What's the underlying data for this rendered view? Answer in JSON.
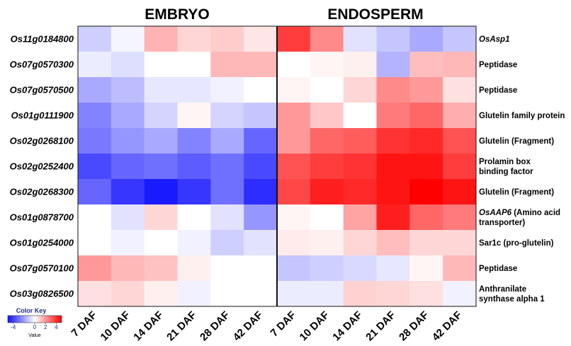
{
  "chart_data": {
    "type": "heatmap",
    "panels": [
      {
        "title": "EMBRYO",
        "columns": [
          "7 DAF",
          "10 DAF",
          "14 DAF",
          "21 DAF",
          "28 DAF",
          "42 DAF"
        ]
      },
      {
        "title": "ENDOSPERM",
        "columns": [
          "7 DAF",
          "10 DAF",
          "14 DAF",
          "21 DAF",
          "28 DAF",
          "42 DAF"
        ]
      }
    ],
    "rows": [
      "Os11g0184800",
      "Os07g0570300",
      "Os07g0570500",
      "Os01g0111900",
      "Os02g0268100",
      "Os02g0252400",
      "Os02g0268300",
      "Os01g0878700",
      "Os01g0254000",
      "Os07g0570100",
      "Os03g0826500"
    ],
    "annotations": [
      [
        {
          "text": "OsAsp1",
          "italic": true
        }
      ],
      [
        {
          "text": "Peptidase",
          "italic": false
        }
      ],
      [
        {
          "text": "Peptidase",
          "italic": false
        }
      ],
      [
        {
          "text": "Glutelin family protein",
          "italic": false
        }
      ],
      [
        {
          "text": "Glutelin (Fragment)",
          "italic": false
        }
      ],
      [
        {
          "text": "Prolamin box",
          "italic": false
        },
        {
          "text": "binding factor",
          "italic": false
        }
      ],
      [
        {
          "text": "Glutelin (Fragment)",
          "italic": false
        }
      ],
      [
        {
          "text": "OsAAP6",
          "italic": true,
          "suffix": " (Amino acid"
        },
        {
          "text": "transporter)",
          "italic": false
        }
      ],
      [
        {
          "text": "Sar1c (pro-glutelin)",
          "italic": false
        }
      ],
      [
        {
          "text": "Peptidase",
          "italic": false
        }
      ],
      [
        {
          "text": "Anthranilate",
          "italic": false
        },
        {
          "text": "synthase alpha 1",
          "italic": false
        }
      ]
    ],
    "values": [
      [
        -1.0,
        -0.2,
        1.5,
        0.8,
        1.0,
        0.5,
        3.8,
        2.3,
        -0.6,
        -1.2,
        -1.8,
        -1.2
      ],
      [
        -0.4,
        -0.7,
        0.0,
        0.0,
        1.4,
        1.4,
        0.0,
        0.2,
        0.3,
        -1.6,
        1.3,
        1.4
      ],
      [
        -1.8,
        -1.4,
        -0.5,
        -0.5,
        -0.3,
        0.0,
        0.2,
        0.0,
        0.8,
        2.3,
        2.0,
        0.6
      ],
      [
        -2.6,
        -1.8,
        -0.9,
        0.2,
        -0.9,
        -1.2,
        2.0,
        1.1,
        0.0,
        2.6,
        3.0,
        1.6
      ],
      [
        -2.8,
        -2.2,
        -1.8,
        -2.6,
        -1.8,
        -3.2,
        2.0,
        3.0,
        3.2,
        4.0,
        4.2,
        3.4
      ],
      [
        -3.8,
        -3.2,
        -3.0,
        -3.4,
        -3.0,
        -3.8,
        3.4,
        3.8,
        4.0,
        4.6,
        4.6,
        3.8
      ],
      [
        -3.2,
        -4.2,
        -4.8,
        -4.2,
        -3.0,
        -4.4,
        3.6,
        4.4,
        4.2,
        4.6,
        5.0,
        4.6
      ],
      [
        0.0,
        -0.6,
        0.8,
        0.0,
        -0.6,
        -2.2,
        0.2,
        0.0,
        1.8,
        4.4,
        3.0,
        2.6
      ],
      [
        0.0,
        -0.3,
        0.0,
        -0.3,
        -1.0,
        -0.6,
        0.4,
        0.3,
        0.8,
        1.3,
        0.8,
        0.8
      ],
      [
        2.0,
        1.4,
        1.2,
        0.3,
        0.0,
        0.0,
        -1.2,
        -1.0,
        -0.8,
        -0.5,
        0.2,
        1.4
      ],
      [
        0.6,
        0.8,
        0.3,
        -0.3,
        0.0,
        0.0,
        -0.4,
        -0.4,
        0.9,
        0.8,
        0.6,
        -0.3
      ]
    ],
    "color_key": {
      "title": "Color Key",
      "label": "Value",
      "ticks": [
        "-4",
        "0",
        "2",
        "4"
      ],
      "range": [
        -5,
        5
      ]
    },
    "colors": {
      "low": "#1010ff",
      "mid": "#ffffff",
      "high": "#ff0000"
    }
  }
}
